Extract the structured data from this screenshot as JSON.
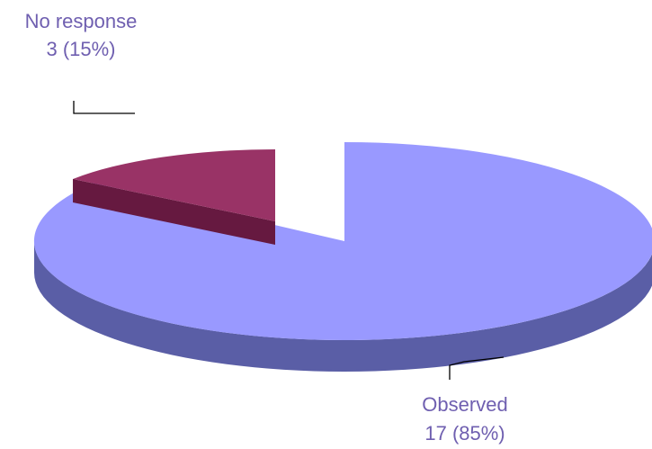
{
  "chart_data": {
    "type": "pie",
    "style": "3d",
    "title": "",
    "slices": [
      {
        "name": "No response",
        "value": 3,
        "percent_label": "3 (15%)",
        "color": "#993366",
        "side_color": "#661940",
        "exploded": true
      },
      {
        "name": "Observed",
        "value": 17,
        "percent_label": "17 (85%)",
        "color": "#9999ff",
        "side_color": "#5a5ea6",
        "exploded": false
      }
    ],
    "label_color": "#6f5fb0"
  }
}
